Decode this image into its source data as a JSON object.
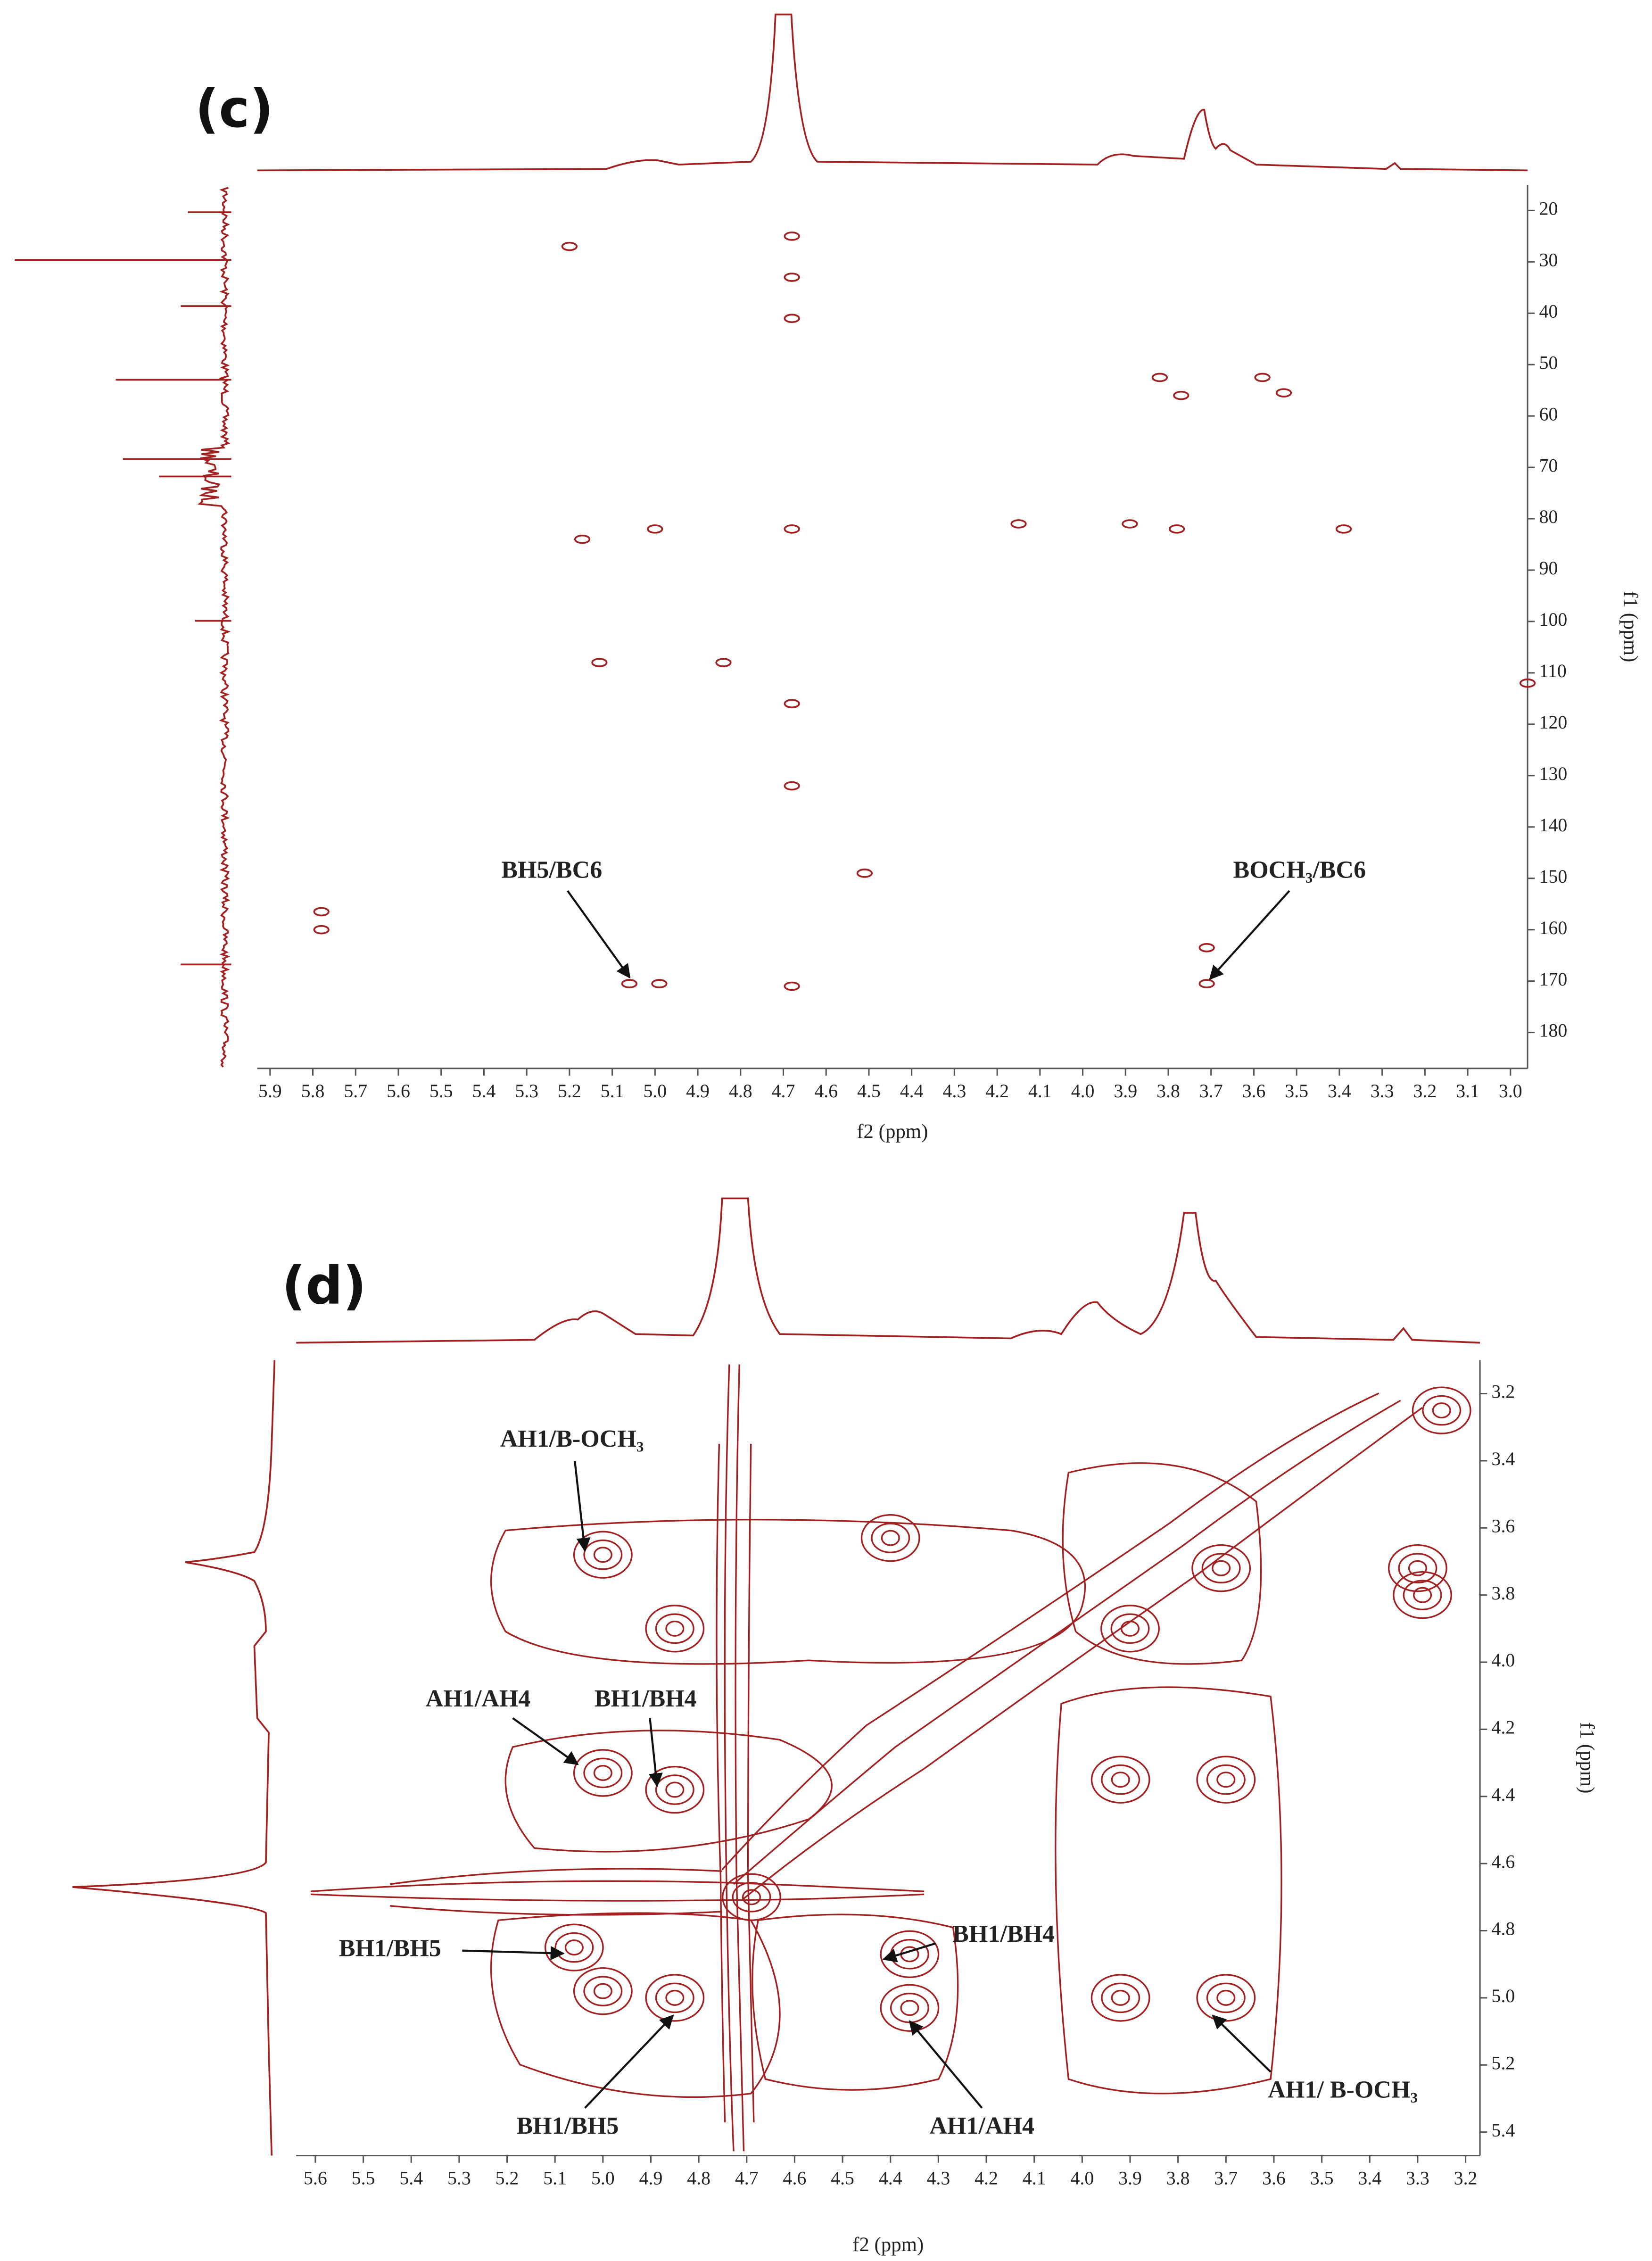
{
  "chart_data": [
    {
      "type": "scatter",
      "panel_label": "(c)",
      "x_label": "f2 (ppm)",
      "y_label": "f1 (ppm)",
      "color": "#a32020",
      "x": [
        3.82,
        3.58,
        3.77,
        3.53,
        5.0,
        4.68,
        4.15,
        3.89,
        3.78,
        3.39,
        5.13,
        4.84,
        5.78,
        5.78,
        5.06,
        4.99,
        4.68,
        4.51,
        3.71,
        3.71,
        4.68,
        4.68,
        4.68,
        4.68,
        4.68,
        5.17,
        5.2,
        2.96
      ],
      "values": [
        52.5,
        52.5,
        56,
        55.5,
        82,
        82,
        81,
        81,
        82,
        82,
        108,
        108,
        156.5,
        160,
        170.5,
        170.5,
        171,
        149,
        163.5,
        170.5,
        25,
        33,
        41,
        116,
        132,
        84,
        27,
        112
      ],
      "xlim": [
        5.93,
        2.96
      ],
      "ylim": [
        15,
        187
      ],
      "xticks": [
        5.9,
        5.8,
        5.7,
        5.6,
        5.5,
        5.4,
        5.3,
        5.2,
        5.1,
        {
          "value": 5.0,
          "label": "5.0"
        },
        4.9,
        4.8,
        4.7,
        4.6,
        4.5,
        4.4,
        4.3,
        4.2,
        4.1,
        {
          "value": 4.0,
          "label": "4.0"
        },
        3.9,
        3.8,
        3.7,
        3.6,
        3.5,
        3.4,
        3.3,
        3.2,
        3.1,
        {
          "value": 3.0,
          "label": "3.0"
        }
      ],
      "yticks": [
        20,
        30,
        40,
        50,
        60,
        70,
        80,
        90,
        100,
        110,
        120,
        130,
        140,
        150,
        160,
        170,
        180
      ],
      "annotations": [
        "BH5/BC6",
        "BOCH₃/BC6"
      ]
    },
    {
      "type": "contour",
      "panel_label": "(d)",
      "x_label": "f2 (ppm)",
      "y_label": "f1 (ppm)",
      "color": "#a32020",
      "x": [
        5.0,
        4.4,
        3.9,
        4.85,
        5.0,
        4.85,
        5.06,
        4.36,
        4.36,
        4.85,
        5.0,
        3.92,
        3.7,
        3.71,
        3.25,
        4.69,
        3.92,
        3.7,
        3.3,
        3.29
      ],
      "values": [
        3.68,
        3.63,
        3.9,
        3.9,
        4.33,
        4.38,
        4.85,
        4.87,
        5.03,
        5.0,
        4.98,
        5.0,
        5.0,
        3.72,
        3.25,
        4.7,
        4.35,
        4.35,
        3.72,
        3.8
      ],
      "xlim": [
        5.64,
        3.17
      ],
      "ylim": [
        3.1,
        5.47
      ],
      "xticks": [
        5.6,
        5.5,
        5.4,
        5.3,
        5.2,
        5.1,
        {
          "value": 5.0,
          "label": "5.0"
        },
        4.9,
        4.8,
        4.7,
        4.6,
        4.5,
        4.4,
        4.3,
        4.2,
        4.1,
        {
          "value": 4.0,
          "label": "4.0"
        },
        3.9,
        3.8,
        3.7,
        3.6,
        3.5,
        3.4,
        3.3,
        3.2
      ],
      "yticks": [
        3.2,
        3.4,
        3.6,
        3.8,
        {
          "value": 4.0,
          "label": "4.0"
        },
        4.2,
        4.4,
        4.6,
        4.8,
        {
          "value": 5.0,
          "label": "5.0"
        },
        5.2,
        5.4
      ],
      "annotations": [
        "AH1/B-OCH₃",
        "AH1/AH4",
        "BH1/BH4",
        "BH1/BH5",
        "BH1/BH4",
        "BH1/BH5",
        "AH1/AH4",
        "AH1/ B-OCH₃"
      ]
    }
  ]
}
